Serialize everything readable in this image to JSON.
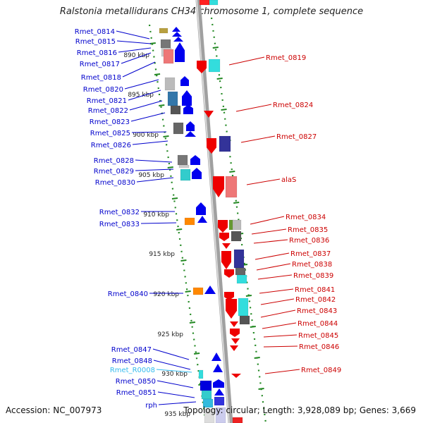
{
  "title": "Ralstonia metallidurans CH34 chromosome 1, complete sequence",
  "footer": {
    "accession_text": "Accession: NC_007973",
    "summary_text": "Topology: circular; Length: 3,928,089 bp; Genes: 3,669"
  },
  "colors": {
    "left_label": "#0000cc",
    "right_label": "#cc0000",
    "rna_label": "#33bbee",
    "ruler": "#228822",
    "backbone": "#888888"
  },
  "scale_ticks": [
    "890 kbp",
    "895 kbp",
    "900 kbp",
    "905 kbp",
    "910 kbp",
    "915 kbp",
    "920 kbp",
    "925 kbp",
    "930 kbp",
    "935 kbp"
  ],
  "left_genes": [
    {
      "label": "Rmet_0814",
      "kind": "protein"
    },
    {
      "label": "Rmet_0815",
      "kind": "protein"
    },
    {
      "label": "Rmet_0816",
      "kind": "protein"
    },
    {
      "label": "Rmet_0817",
      "kind": "protein"
    },
    {
      "label": "Rmet_0818",
      "kind": "protein"
    },
    {
      "label": "Rmet_0820",
      "kind": "protein"
    },
    {
      "label": "Rmet_0821",
      "kind": "protein"
    },
    {
      "label": "Rmet_0822",
      "kind": "protein"
    },
    {
      "label": "Rmet_0823",
      "kind": "protein"
    },
    {
      "label": "Rmet_0825",
      "kind": "protein"
    },
    {
      "label": "Rmet_0826",
      "kind": "protein"
    },
    {
      "label": "Rmet_0828",
      "kind": "protein"
    },
    {
      "label": "Rmet_0829",
      "kind": "protein"
    },
    {
      "label": "Rmet_0830",
      "kind": "protein"
    },
    {
      "label": "Rmet_0832",
      "kind": "protein"
    },
    {
      "label": "Rmet_0833",
      "kind": "protein"
    },
    {
      "label": "Rmet_0840",
      "kind": "protein"
    },
    {
      "label": "Rmet_0847",
      "kind": "protein"
    },
    {
      "label": "Rmet_0848",
      "kind": "protein"
    },
    {
      "label": "Rmet_R0008",
      "kind": "rna"
    },
    {
      "label": "Rmet_0850",
      "kind": "protein"
    },
    {
      "label": "Rmet_0851",
      "kind": "protein"
    },
    {
      "label": "rph",
      "kind": "protein"
    }
  ],
  "right_genes": [
    {
      "label": "Rmet_0819"
    },
    {
      "label": "Rmet_0824"
    },
    {
      "label": "Rmet_0827"
    },
    {
      "label": "alaS"
    },
    {
      "label": "Rmet_0834"
    },
    {
      "label": "Rmet_0835"
    },
    {
      "label": "Rmet_0836"
    },
    {
      "label": "Rmet_0837"
    },
    {
      "label": "Rmet_0838"
    },
    {
      "label": "Rmet_0839"
    },
    {
      "label": "Rmet_0841"
    },
    {
      "label": "Rmet_0842"
    },
    {
      "label": "Rmet_0843"
    },
    {
      "label": "Rmet_0844"
    },
    {
      "label": "Rmet_0845"
    },
    {
      "label": "Rmet_0846"
    },
    {
      "label": "Rmet_0849"
    }
  ]
}
